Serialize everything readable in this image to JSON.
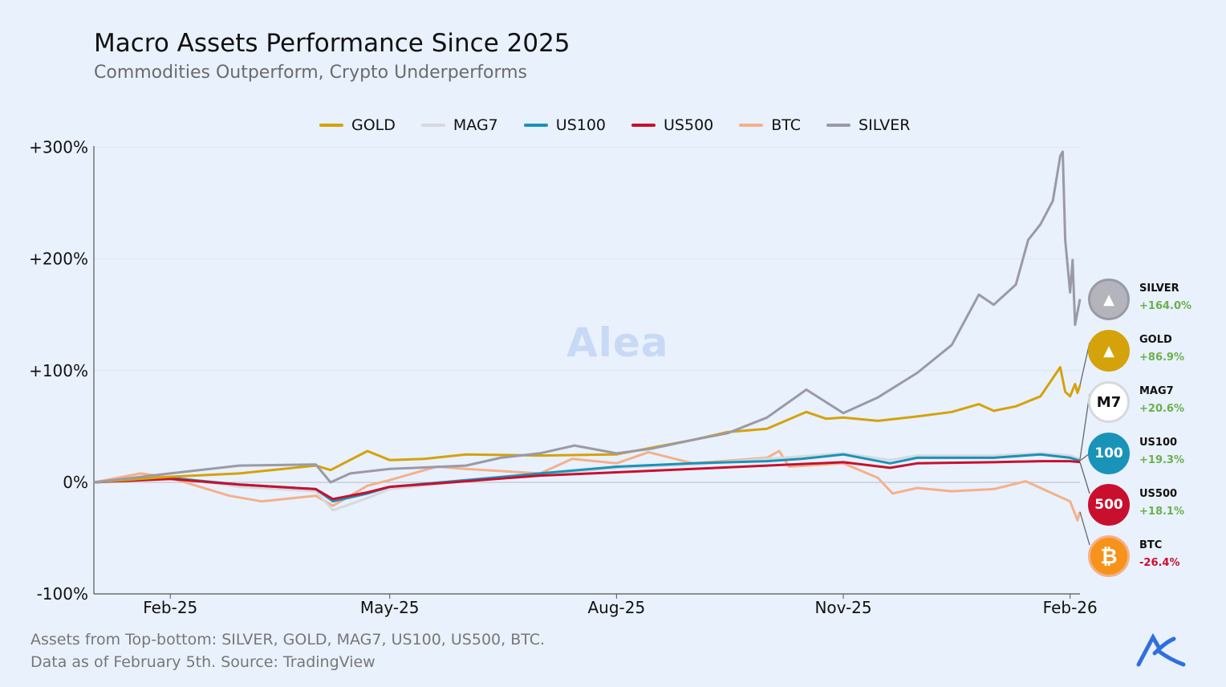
{
  "title": "Macro Assets Performance Since 2025",
  "subtitle": "Commodities Outperform, Crypto Underperforms",
  "footer": [
    "Assets from Top-bottom: SILVER, GOLD, MAG7, US100, US500, BTC.",
    "Data as of February 5th. Source: TradingView"
  ],
  "watermark": "Alea",
  "logo": "Alea",
  "chart_data": {
    "type": "line",
    "title": "Macro Assets Performance Since 2025",
    "ylim": [
      -100,
      300
    ],
    "yticks": [
      {
        "v": 300,
        "label": "+300%"
      },
      {
        "v": 200,
        "label": "+200%"
      },
      {
        "v": 100,
        "label": "+100%"
      },
      {
        "v": 0,
        "label": "0%"
      },
      {
        "v": -100,
        "label": "-100%"
      }
    ],
    "xticks": [
      {
        "d": "2025-02-01",
        "label": "Feb-25"
      },
      {
        "d": "2025-05-01",
        "label": "May-25"
      },
      {
        "d": "2025-08-01",
        "label": "Aug-25"
      },
      {
        "d": "2025-11-01",
        "label": "Nov-25"
      },
      {
        "d": "2026-02-01",
        "label": "Feb-26"
      }
    ],
    "xrange": [
      "2025-01-01",
      "2026-02-05"
    ],
    "legend_position": "top",
    "series": [
      {
        "name": "GOLD",
        "color": "#d4a20a",
        "final": "+86.9%",
        "points": [
          [
            "2025-01-01",
            0
          ],
          [
            "2025-02-01",
            5
          ],
          [
            "2025-03-01",
            8
          ],
          [
            "2025-04-01",
            15
          ],
          [
            "2025-04-07",
            11
          ],
          [
            "2025-04-22",
            28
          ],
          [
            "2025-05-01",
            20
          ],
          [
            "2025-05-15",
            21
          ],
          [
            "2025-06-01",
            25
          ],
          [
            "2025-07-01",
            24
          ],
          [
            "2025-08-01",
            25
          ],
          [
            "2025-09-01",
            38
          ],
          [
            "2025-09-15",
            45
          ],
          [
            "2025-10-01",
            48
          ],
          [
            "2025-10-17",
            63
          ],
          [
            "2025-10-25",
            57
          ],
          [
            "2025-11-01",
            58
          ],
          [
            "2025-11-15",
            55
          ],
          [
            "2025-12-01",
            59
          ],
          [
            "2025-12-15",
            63
          ],
          [
            "2025-12-26",
            70
          ],
          [
            "2026-01-01",
            64
          ],
          [
            "2026-01-10",
            68
          ],
          [
            "2026-01-20",
            77
          ],
          [
            "2026-01-28",
            103
          ],
          [
            "2026-01-30",
            81
          ],
          [
            "2026-02-01",
            77
          ],
          [
            "2026-02-03",
            88
          ],
          [
            "2026-02-04",
            80
          ],
          [
            "2026-02-05",
            86.9
          ]
        ]
      },
      {
        "name": "MAG7",
        "color": "#d6d9dd",
        "final": "+20.6%",
        "points": [
          [
            "2025-01-01",
            0
          ],
          [
            "2025-02-01",
            5
          ],
          [
            "2025-03-01",
            -4
          ],
          [
            "2025-04-01",
            -8
          ],
          [
            "2025-04-08",
            -25
          ],
          [
            "2025-04-22",
            -14
          ],
          [
            "2025-05-01",
            -6
          ],
          [
            "2025-06-01",
            1
          ],
          [
            "2025-07-01",
            7
          ],
          [
            "2025-08-01",
            13
          ],
          [
            "2025-09-01",
            16
          ],
          [
            "2025-10-01",
            21
          ],
          [
            "2025-11-01",
            26
          ],
          [
            "2025-11-20",
            20
          ],
          [
            "2025-12-01",
            24
          ],
          [
            "2026-01-01",
            24
          ],
          [
            "2026-01-20",
            26
          ],
          [
            "2026-02-01",
            24
          ],
          [
            "2026-02-05",
            20.6
          ]
        ]
      },
      {
        "name": "US100",
        "color": "#1a93b8",
        "final": "+19.3%",
        "points": [
          [
            "2025-01-01",
            0
          ],
          [
            "2025-02-01",
            4
          ],
          [
            "2025-03-01",
            -2
          ],
          [
            "2025-04-01",
            -6
          ],
          [
            "2025-04-08",
            -17
          ],
          [
            "2025-04-22",
            -10
          ],
          [
            "2025-05-01",
            -4
          ],
          [
            "2025-06-01",
            2
          ],
          [
            "2025-07-01",
            8
          ],
          [
            "2025-08-01",
            14
          ],
          [
            "2025-09-01",
            17
          ],
          [
            "2025-10-01",
            19
          ],
          [
            "2025-10-15",
            21
          ],
          [
            "2025-11-01",
            25
          ],
          [
            "2025-11-20",
            17
          ],
          [
            "2025-12-01",
            22
          ],
          [
            "2026-01-01",
            22
          ],
          [
            "2026-01-20",
            25
          ],
          [
            "2026-02-01",
            22
          ],
          [
            "2026-02-05",
            19.3
          ]
        ]
      },
      {
        "name": "US500",
        "color": "#c8102e",
        "final": "+18.1%",
        "points": [
          [
            "2025-01-01",
            0
          ],
          [
            "2025-02-01",
            3
          ],
          [
            "2025-03-01",
            -2
          ],
          [
            "2025-04-01",
            -6
          ],
          [
            "2025-04-08",
            -15
          ],
          [
            "2025-04-22",
            -9
          ],
          [
            "2025-05-01",
            -4
          ],
          [
            "2025-06-01",
            1
          ],
          [
            "2025-07-01",
            6
          ],
          [
            "2025-08-01",
            9
          ],
          [
            "2025-09-01",
            12
          ],
          [
            "2025-10-01",
            15
          ],
          [
            "2025-11-01",
            18
          ],
          [
            "2025-11-20",
            13
          ],
          [
            "2025-12-01",
            17
          ],
          [
            "2026-01-01",
            18
          ],
          [
            "2026-01-20",
            19
          ],
          [
            "2026-02-01",
            19
          ],
          [
            "2026-02-05",
            18.1
          ]
        ]
      },
      {
        "name": "BTC",
        "color": "#f5b08a",
        "final": "-26.4%",
        "points": [
          [
            "2025-01-01",
            0
          ],
          [
            "2025-01-20",
            8
          ],
          [
            "2025-02-01",
            4
          ],
          [
            "2025-02-25",
            -12
          ],
          [
            "2025-03-10",
            -17
          ],
          [
            "2025-04-01",
            -12
          ],
          [
            "2025-04-08",
            -21
          ],
          [
            "2025-04-22",
            -3
          ],
          [
            "2025-05-01",
            2
          ],
          [
            "2025-05-20",
            14
          ],
          [
            "2025-06-01",
            12
          ],
          [
            "2025-07-01",
            8
          ],
          [
            "2025-07-14",
            21
          ],
          [
            "2025-08-01",
            17
          ],
          [
            "2025-08-14",
            27
          ],
          [
            "2025-09-01",
            17
          ],
          [
            "2025-10-01",
            22
          ],
          [
            "2025-10-06",
            28
          ],
          [
            "2025-10-10",
            14
          ],
          [
            "2025-11-01",
            17
          ],
          [
            "2025-11-15",
            4
          ],
          [
            "2025-11-21",
            -10
          ],
          [
            "2025-12-01",
            -5
          ],
          [
            "2025-12-15",
            -8
          ],
          [
            "2026-01-01",
            -6
          ],
          [
            "2026-01-14",
            1
          ],
          [
            "2026-01-20",
            -5
          ],
          [
            "2026-02-01",
            -17
          ],
          [
            "2026-02-04",
            -34
          ],
          [
            "2026-02-05",
            -26.4
          ]
        ]
      },
      {
        "name": "SILVER",
        "color": "#9a9aa6",
        "final": "+164.0%",
        "points": [
          [
            "2025-01-01",
            0
          ],
          [
            "2025-02-01",
            8
          ],
          [
            "2025-03-01",
            15
          ],
          [
            "2025-04-01",
            16
          ],
          [
            "2025-04-07",
            0
          ],
          [
            "2025-04-15",
            8
          ],
          [
            "2025-05-01",
            12
          ],
          [
            "2025-06-01",
            15
          ],
          [
            "2025-06-15",
            22
          ],
          [
            "2025-07-01",
            26
          ],
          [
            "2025-07-15",
            33
          ],
          [
            "2025-08-01",
            26
          ],
          [
            "2025-08-15",
            30
          ],
          [
            "2025-09-01",
            38
          ],
          [
            "2025-09-15",
            44
          ],
          [
            "2025-10-01",
            58
          ],
          [
            "2025-10-17",
            83
          ],
          [
            "2025-11-01",
            62
          ],
          [
            "2025-11-15",
            76
          ],
          [
            "2025-12-01",
            98
          ],
          [
            "2025-12-15",
            123
          ],
          [
            "2025-12-26",
            168
          ],
          [
            "2026-01-01",
            159
          ],
          [
            "2026-01-10",
            177
          ],
          [
            "2026-01-15",
            217
          ],
          [
            "2026-01-20",
            231
          ],
          [
            "2026-01-25",
            252
          ],
          [
            "2026-01-28",
            292
          ],
          [
            "2026-01-29",
            296
          ],
          [
            "2026-01-30",
            217
          ],
          [
            "2026-02-01",
            170
          ],
          [
            "2026-02-02",
            199
          ],
          [
            "2026-02-03",
            141
          ],
          [
            "2026-02-05",
            164
          ]
        ]
      }
    ]
  },
  "badges": [
    {
      "name": "SILVER",
      "value": "+164.0%",
      "icon": "silver-bars-icon",
      "fill": "#b4b4bc",
      "ring": "#9a9aa6",
      "glyph": "▲",
      "value_color": "#6ab04c"
    },
    {
      "name": "GOLD",
      "value": "+86.9%",
      "icon": "gold-bars-icon",
      "fill": "#d4a20a",
      "ring": "#d4a20a",
      "glyph": "▲",
      "value_color": "#6ab04c"
    },
    {
      "name": "MAG7",
      "value": "+20.6%",
      "icon": "magnificent-7-icon",
      "fill": "#ffffff",
      "ring": "#d6d9dd",
      "glyph": "M7",
      "value_color": "#6ab04c"
    },
    {
      "name": "US100",
      "value": "+19.3%",
      "icon": "us100-icon",
      "fill": "#1a93b8",
      "ring": "#1a93b8",
      "glyph": "100",
      "value_color": "#6ab04c"
    },
    {
      "name": "US500",
      "value": "+18.1%",
      "icon": "us500-icon",
      "fill": "#c8102e",
      "ring": "#c8102e",
      "glyph": "500",
      "value_color": "#6ab04c"
    },
    {
      "name": "BTC",
      "value": "-26.4%",
      "icon": "bitcoin-icon",
      "fill": "#f7931a",
      "ring": "#f5b08a",
      "glyph": "₿",
      "value_color": "#c8102e"
    }
  ]
}
